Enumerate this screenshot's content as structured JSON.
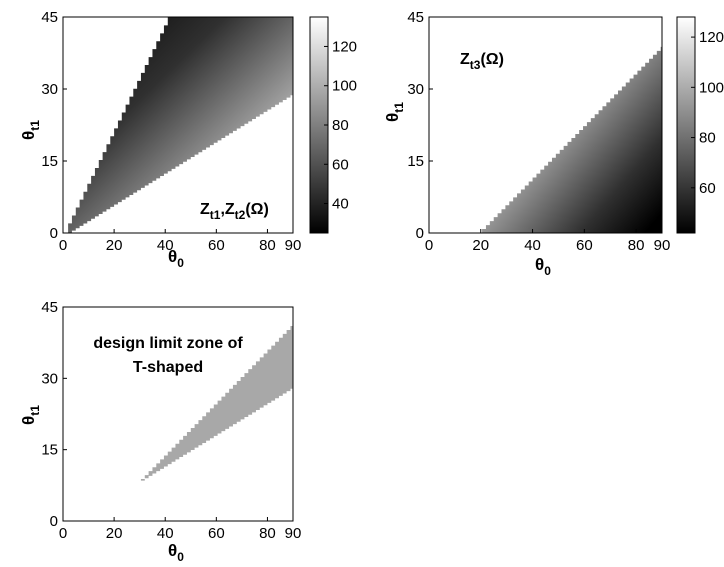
{
  "chart_data": [
    {
      "type": "heatmap",
      "annotation": {
        "main": "Z",
        "sub1": "t1",
        "sep": ",Z",
        "sub2": "t2",
        "tail": "(Ω)"
      },
      "xlabel": {
        "main": "θ",
        "sub": "0"
      },
      "ylabel": {
        "main": "θ",
        "sub": "t1"
      },
      "xlim": [
        0,
        90
      ],
      "ylim": [
        0,
        45
      ],
      "xticks": [
        0,
        20,
        40,
        60,
        80,
        90
      ],
      "yticks": [
        0,
        15,
        30,
        45
      ],
      "grid": false,
      "colormap": "gray",
      "colorbar": {
        "range": [
          25,
          135
        ],
        "ticks": [
          40,
          60,
          80,
          100,
          120
        ]
      },
      "region": {
        "x_min": 2,
        "y_upper_slope": 1.1,
        "y_lower_slope": 0.33
      },
      "value_trend": "dark near upper boundary (about 25 Ω), bright near lower boundary (about 135 Ω)"
    },
    {
      "type": "heatmap",
      "annotation": {
        "main": "Z",
        "sub1": "t3",
        "sep": "",
        "sub2": "",
        "tail": "(Ω)"
      },
      "xlabel": {
        "main": "θ",
        "sub": "0"
      },
      "ylabel": {
        "main": "θ",
        "sub": "t1"
      },
      "xlim": [
        0,
        90
      ],
      "ylim": [
        0,
        45
      ],
      "xticks": [
        0,
        20,
        40,
        60,
        80,
        90
      ],
      "yticks": [
        0,
        15,
        30,
        45
      ],
      "grid": false,
      "colormap": "gray",
      "colorbar": {
        "range": [
          42,
          128
        ],
        "ticks": [
          60,
          80,
          100,
          120
        ]
      },
      "region": {
        "x_min": 19,
        "y_upper_slope": 0.55,
        "y_lower_slope": 0
      },
      "value_trend": "bright near upper boundary (about 128 Ω), dark toward bottom-right (about 42 Ω)"
    },
    {
      "type": "heatmap",
      "annotation": {
        "line1": "design limit zone of",
        "line2": "T-shaped"
      },
      "xlabel": {
        "main": "θ",
        "sub": "0"
      },
      "ylabel": {
        "main": "θ",
        "sub": "t1"
      },
      "xlim": [
        0,
        90
      ],
      "ylim": [
        0,
        45
      ],
      "xticks": [
        0,
        20,
        40,
        60,
        80,
        90
      ],
      "yticks": [
        0,
        15,
        30,
        45
      ],
      "grid": false,
      "region": {
        "x_min": 29,
        "y_upper_slope": 0.55,
        "y_lower_slope": 0.33,
        "fill": "#a8a8a8"
      }
    }
  ]
}
